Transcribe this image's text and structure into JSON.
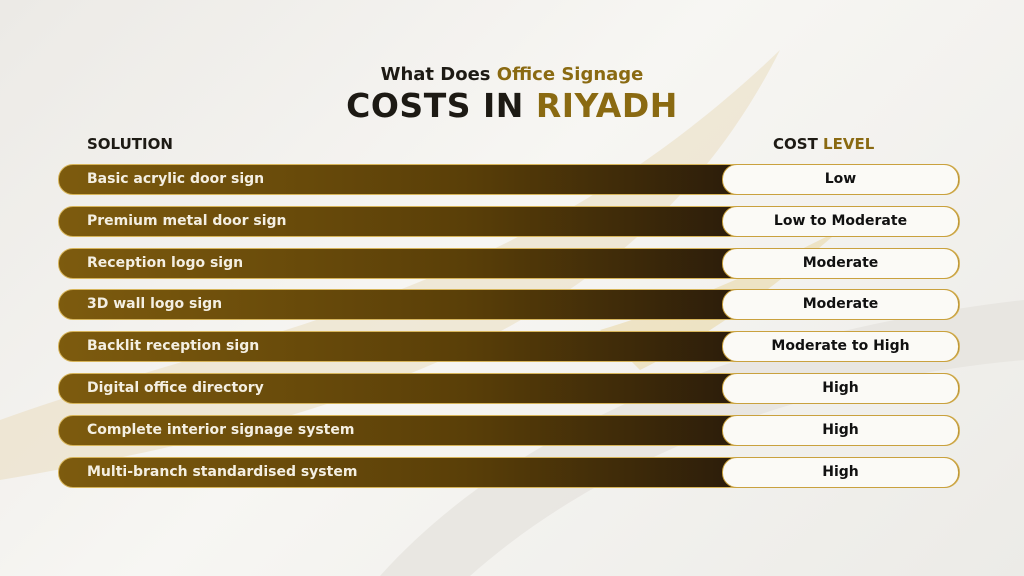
{
  "header": {
    "title": {
      "plain": "What Does",
      "highlight": "Office Signage"
    },
    "subtitle": {
      "plain": "COSTS IN",
      "highlight": "RIYADH"
    }
  },
  "table": {
    "columns": {
      "0": "SOLUTION",
      "1": {
        "plain": "COST",
        "highlight": "LEVEL"
      }
    },
    "rows": [
      [
        "Basic acrylic door sign",
        "Low"
      ],
      [
        "Premium metal door sign",
        "Low to Moderate"
      ],
      [
        "Reception logo sign",
        "Moderate"
      ],
      [
        "3D wall logo sign",
        "Moderate"
      ],
      [
        "Backlit reception sign",
        "Moderate to High"
      ],
      [
        "Digital office directory",
        "High"
      ],
      [
        "Complete interior signage system",
        "High"
      ],
      [
        "Multi-branch standardised system",
        "High"
      ]
    ]
  }
}
